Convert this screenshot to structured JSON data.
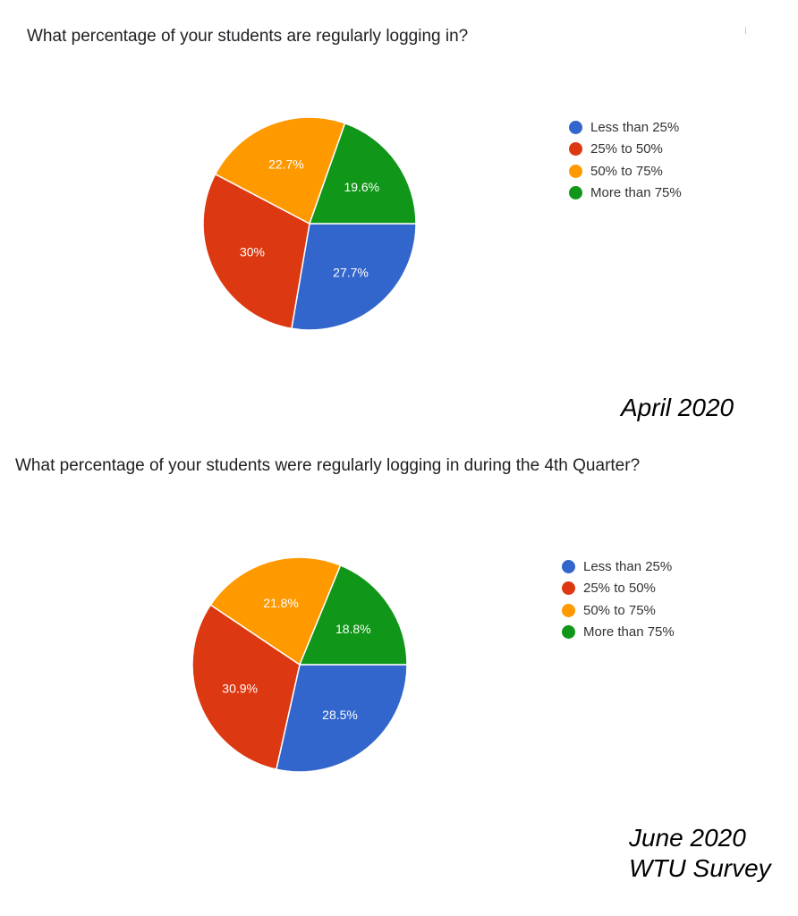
{
  "charts": {
    "april": {
      "question": "What percentage of your students are regularly logging in?",
      "caption": "April 2020"
    },
    "june": {
      "question": "What percentage of your students were regularly logging in during the 4th Quarter?",
      "caption_line1": "June 2020",
      "caption_line2": "WTU Survey"
    }
  },
  "colors": {
    "Less than 25%": "#3366cc",
    "25% to 50%": "#dc3912",
    "50% to 75%": "#ff9900",
    "More than 75%": "#109618"
  },
  "chart_data": [
    {
      "type": "pie",
      "title": "What percentage of your students are regularly logging in?",
      "categories": [
        "Less than 25%",
        "25% to 50%",
        "50% to 75%",
        "More than 75%"
      ],
      "values": [
        27.7,
        30,
        22.7,
        19.6
      ],
      "labels": [
        "27.7%",
        "30%",
        "22.7%",
        "19.6%"
      ],
      "start_angle_deg": 90,
      "direction": "clockwise",
      "legend_position": "right"
    },
    {
      "type": "pie",
      "title": "What percentage of your students were regularly logging in during the 4th Quarter?",
      "categories": [
        "Less than 25%",
        "25% to 50%",
        "50% to 75%",
        "More than 75%"
      ],
      "values": [
        28.5,
        30.9,
        21.8,
        18.8
      ],
      "labels": [
        "28.5%",
        "30.9%",
        "21.8%",
        "18.8%"
      ],
      "start_angle_deg": 90,
      "direction": "clockwise",
      "legend_position": "right"
    }
  ]
}
